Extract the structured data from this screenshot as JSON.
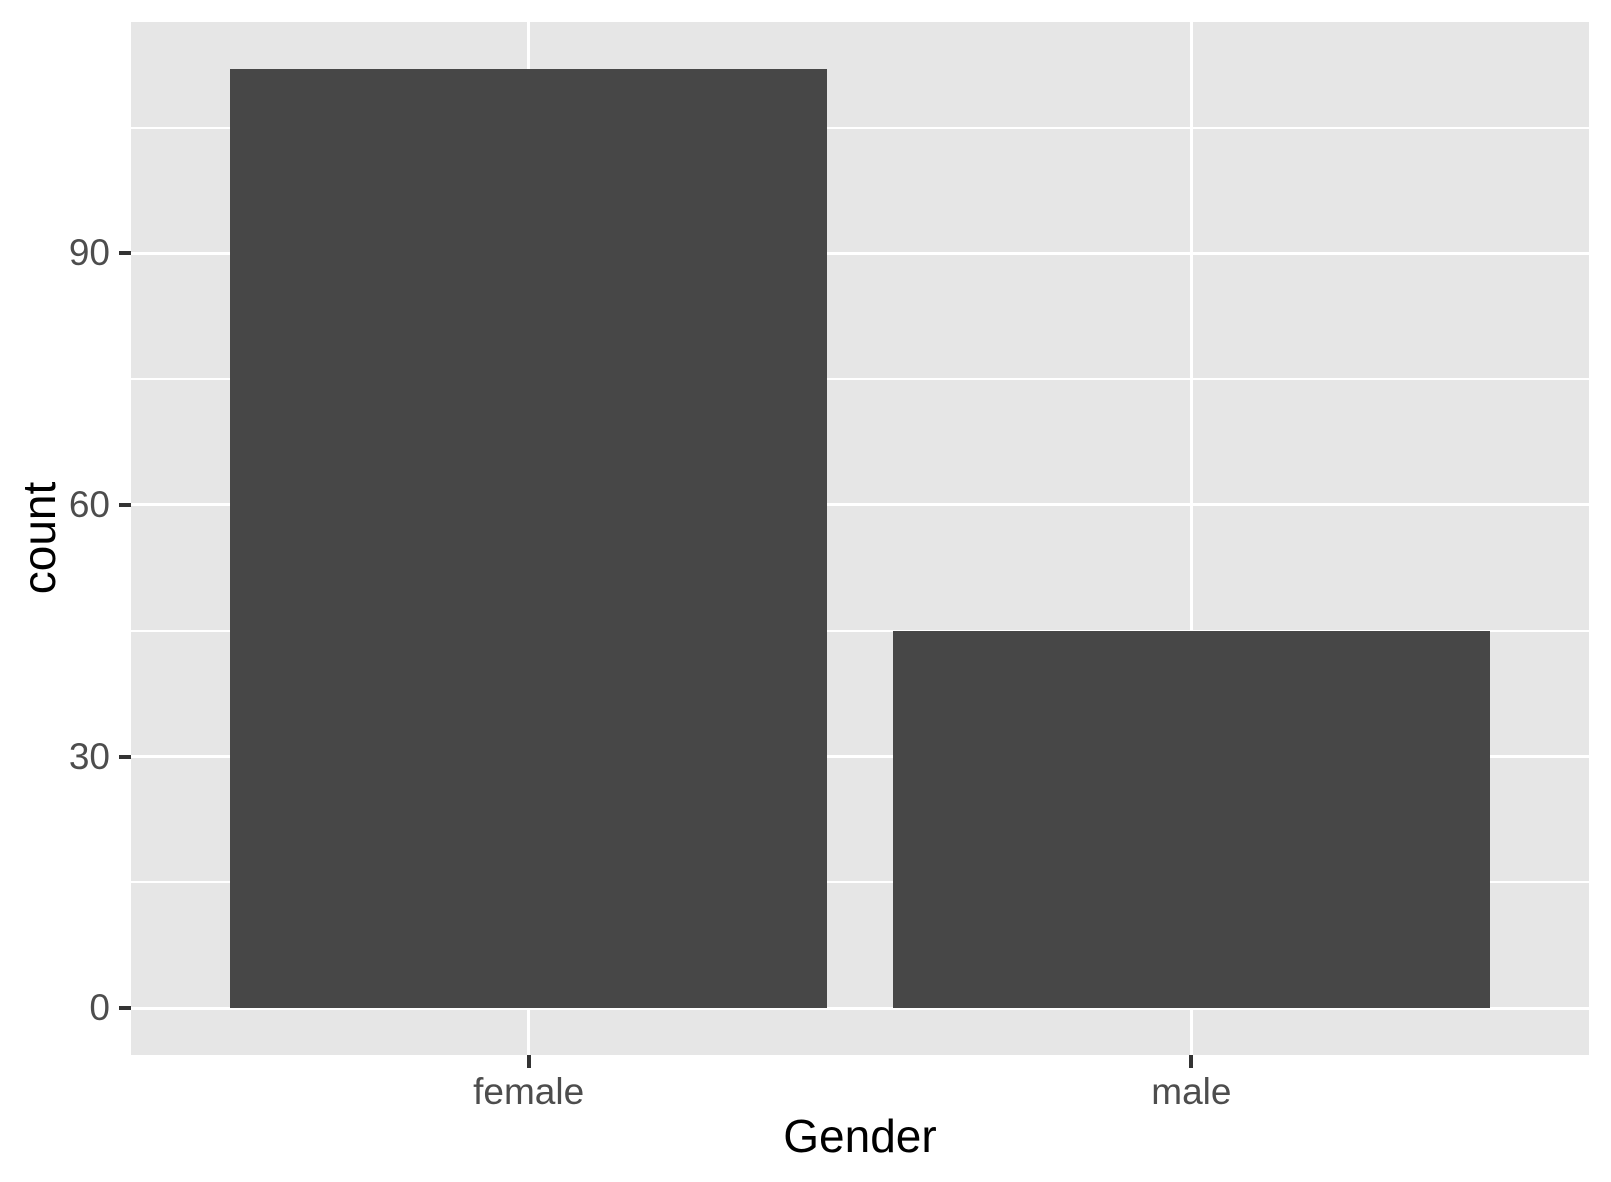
{
  "chart_data": {
    "type": "bar",
    "categories": [
      "female",
      "male"
    ],
    "values": [
      112,
      45
    ],
    "title": "",
    "xlabel": "Gender",
    "ylabel": "count",
    "yticks": [
      0,
      30,
      60,
      90
    ],
    "ytick_labels": [
      "0",
      "30",
      "60",
      "90"
    ],
    "y_minor_gridlines": [
      15,
      45,
      75,
      105
    ],
    "ylim": [
      -5.6,
      117.6
    ],
    "grid": true,
    "legend": false,
    "bar_width_fraction": 0.9,
    "colors": {
      "bar_fill": "#474747",
      "panel_background": "#E6E6E6",
      "grid_major": "#FFFFFF",
      "grid_minor": "#FFFFFF",
      "tick_mark": "#333333",
      "tick_label": "#4D4D4D",
      "axis_title": "#000000",
      "figure_background": "#FFFFFF"
    }
  }
}
